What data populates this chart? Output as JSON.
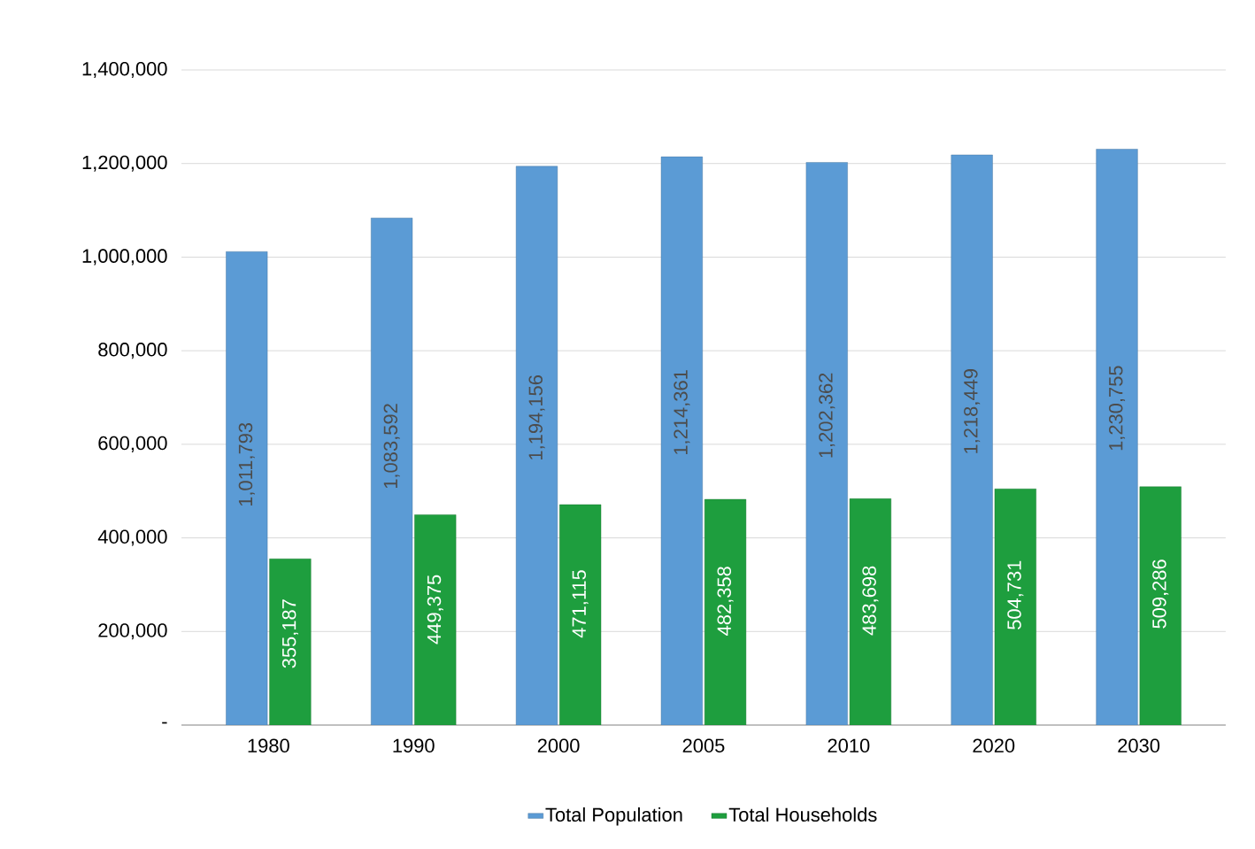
{
  "chart_data": {
    "type": "bar",
    "categories": [
      "1980",
      "1990",
      "2000",
      "2005",
      "2010",
      "2020",
      "2030"
    ],
    "series": [
      {
        "name": "Total Population",
        "color": "#5b9bd5",
        "values": [
          1011793,
          1083592,
          1194156,
          1214361,
          1202362,
          1218449,
          1230755
        ],
        "value_labels": [
          "1,011,793",
          "1,083,592",
          "1,194,156",
          "1,214,361",
          "1,202,362",
          "1,218,449",
          "1,230,755"
        ]
      },
      {
        "name": "Total Households",
        "color": "#1e9e3e",
        "values": [
          355187,
          449375,
          471115,
          482358,
          483698,
          504731,
          509286
        ],
        "value_labels": [
          "355,187",
          "449,375",
          "471,115",
          "482,358",
          "483,698",
          "504,731",
          "509,286"
        ]
      }
    ],
    "ylim": [
      0,
      1400000
    ],
    "yticks": [
      {
        "value": 0,
        "label": "-"
      },
      {
        "value": 200000,
        "label": "200,000"
      },
      {
        "value": 400000,
        "label": "400,000"
      },
      {
        "value": 600000,
        "label": "600,000"
      },
      {
        "value": 800000,
        "label": "800,000"
      },
      {
        "value": 1000000,
        "label": "1,000,000"
      },
      {
        "value": 1200000,
        "label": "1,200,000"
      },
      {
        "value": 1400000,
        "label": "1,400,000"
      }
    ],
    "grid": "y",
    "legend": "bottom"
  }
}
